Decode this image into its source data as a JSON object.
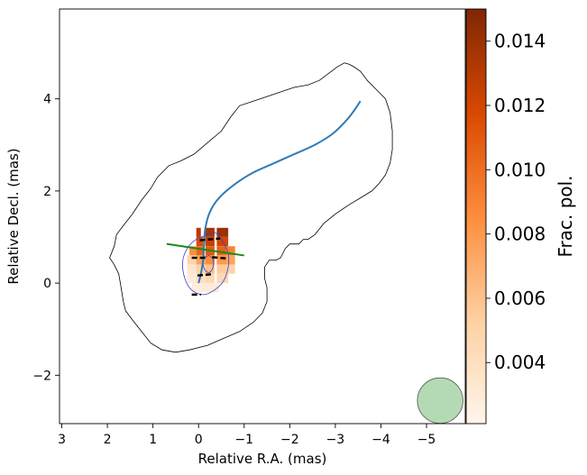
{
  "chart_data": {
    "type": "polarization-map",
    "xlabel": "Relative R.A. (mas)",
    "ylabel": "Relative Decl. (mas)",
    "xlim": [
      3.05,
      -5.85
    ],
    "ylim": [
      -3.05,
      5.95
    ],
    "x_ticks": [
      3,
      2,
      1,
      0,
      -1,
      -2,
      -3,
      -4,
      -5
    ],
    "x_tick_labels": [
      "3",
      "2",
      "1",
      "0",
      "−1",
      "−2",
      "−3",
      "−4",
      "−5"
    ],
    "y_ticks": [
      -2,
      0,
      2,
      4
    ],
    "y_tick_labels": [
      "−2",
      "0",
      "2",
      "4"
    ],
    "colorbar": {
      "label": "Frac. pol.",
      "range": [
        0.0021,
        0.015
      ],
      "ticks": [
        0.004,
        0.006,
        0.008,
        0.01,
        0.012,
        0.014
      ],
      "tick_labels": [
        "0.004",
        "0.006",
        "0.008",
        "0.010",
        "0.012",
        "0.014"
      ],
      "colormap": [
        "#fff5eb",
        "#fdd0a2",
        "#fd8d3c",
        "#d94801",
        "#7f2704"
      ]
    },
    "outer_contour": [
      [
        -3.2,
        4.78
      ],
      [
        -3.3,
        4.75
      ],
      [
        -3.4,
        4.7
      ],
      [
        -3.55,
        4.6
      ],
      [
        -3.7,
        4.4
      ],
      [
        -3.9,
        4.2
      ],
      [
        -4.1,
        4.0
      ],
      [
        -4.2,
        3.7
      ],
      [
        -4.25,
        3.3
      ],
      [
        -4.25,
        2.9
      ],
      [
        -4.2,
        2.6
      ],
      [
        -4.1,
        2.35
      ],
      [
        -3.95,
        2.15
      ],
      [
        -3.8,
        2.0
      ],
      [
        -3.55,
        1.85
      ],
      [
        -3.3,
        1.7
      ],
      [
        -3.0,
        1.5
      ],
      [
        -2.75,
        1.3
      ],
      [
        -2.55,
        1.05
      ],
      [
        -2.4,
        0.95
      ],
      [
        -2.3,
        0.95
      ],
      [
        -2.2,
        0.85
      ],
      [
        -2.0,
        0.85
      ],
      [
        -1.9,
        0.75
      ],
      [
        -1.8,
        0.55
      ],
      [
        -1.7,
        0.5
      ],
      [
        -1.55,
        0.5
      ],
      [
        -1.45,
        0.35
      ],
      [
        -1.45,
        0.1
      ],
      [
        -1.5,
        -0.1
      ],
      [
        -1.5,
        -0.4
      ],
      [
        -1.4,
        -0.65
      ],
      [
        -1.2,
        -0.85
      ],
      [
        -0.9,
        -1.05
      ],
      [
        -0.55,
        -1.2
      ],
      [
        -0.2,
        -1.35
      ],
      [
        0.2,
        -1.45
      ],
      [
        0.5,
        -1.5
      ],
      [
        0.8,
        -1.45
      ],
      [
        1.05,
        -1.3
      ],
      [
        1.25,
        -1.05
      ],
      [
        1.45,
        -0.8
      ],
      [
        1.6,
        -0.6
      ],
      [
        1.65,
        -0.4
      ],
      [
        1.7,
        -0.1
      ],
      [
        1.75,
        0.2
      ],
      [
        1.85,
        0.4
      ],
      [
        1.95,
        0.55
      ],
      [
        1.85,
        0.8
      ],
      [
        1.8,
        1.05
      ],
      [
        1.65,
        1.25
      ],
      [
        1.45,
        1.5
      ],
      [
        1.25,
        1.8
      ],
      [
        1.05,
        2.05
      ],
      [
        0.9,
        2.3
      ],
      [
        0.65,
        2.55
      ],
      [
        0.4,
        2.65
      ],
      [
        0.1,
        2.8
      ],
      [
        -0.2,
        3.05
      ],
      [
        -0.5,
        3.3
      ],
      [
        -0.7,
        3.6
      ],
      [
        -0.9,
        3.85
      ],
      [
        -1.2,
        3.95
      ],
      [
        -1.5,
        4.05
      ],
      [
        -1.8,
        4.15
      ],
      [
        -2.1,
        4.25
      ],
      [
        -2.4,
        4.3
      ],
      [
        -2.65,
        4.4
      ],
      [
        -2.85,
        4.55
      ],
      [
        -3.05,
        4.7
      ],
      [
        -3.2,
        4.78
      ]
    ],
    "inner_contour": [
      [
        -0.2,
        1.05
      ],
      [
        0.05,
        0.95
      ],
      [
        0.25,
        0.75
      ],
      [
        0.35,
        0.45
      ],
      [
        0.3,
        0.1
      ],
      [
        0.15,
        -0.15
      ],
      [
        -0.1,
        -0.25
      ],
      [
        -0.35,
        -0.15
      ],
      [
        -0.55,
        0.05
      ],
      [
        -0.65,
        0.35
      ],
      [
        -0.65,
        0.65
      ],
      [
        -0.5,
        0.95
      ],
      [
        -0.35,
        1.1
      ],
      [
        -0.2,
        1.05
      ]
    ],
    "core_contour": [
      [
        -0.22,
        0.6
      ],
      [
        -0.13,
        0.55
      ],
      [
        -0.1,
        0.45
      ],
      [
        -0.13,
        0.3
      ],
      [
        -0.22,
        0.23
      ],
      [
        -0.3,
        0.3
      ],
      [
        -0.33,
        0.45
      ],
      [
        -0.3,
        0.55
      ],
      [
        -0.22,
        0.6
      ]
    ],
    "jet_curve": [
      [
        0.0,
        0.0
      ],
      [
        -0.05,
        0.2
      ],
      [
        -0.1,
        0.5
      ],
      [
        -0.12,
        0.85
      ],
      [
        -0.15,
        1.2
      ],
      [
        -0.25,
        1.55
      ],
      [
        -0.45,
        1.85
      ],
      [
        -0.8,
        2.15
      ],
      [
        -1.2,
        2.4
      ],
      [
        -1.65,
        2.6
      ],
      [
        -2.1,
        2.8
      ],
      [
        -2.55,
        3.0
      ],
      [
        -2.95,
        3.25
      ],
      [
        -3.3,
        3.6
      ],
      [
        -3.55,
        3.95
      ]
    ],
    "ridge_line": [
      [
        0.7,
        0.85
      ],
      [
        -1.0,
        0.6
      ]
    ],
    "pixels": [
      {
        "x": 0.05,
        "y": 1.0,
        "w": 0.1,
        "h": 0.2,
        "v": 0.013
      },
      {
        "x": -0.15,
        "y": 1.0,
        "w": 0.2,
        "h": 0.2,
        "v": 0.0135
      },
      {
        "x": -0.4,
        "y": 1.0,
        "w": 0.25,
        "h": 0.2,
        "v": 0.014
      },
      {
        "x": 0.05,
        "y": 0.8,
        "w": 0.15,
        "h": 0.2,
        "v": 0.0115
      },
      {
        "x": -0.15,
        "y": 0.8,
        "w": 0.2,
        "h": 0.2,
        "v": 0.0125
      },
      {
        "x": -0.4,
        "y": 0.8,
        "w": 0.25,
        "h": 0.2,
        "v": 0.012
      },
      {
        "x": 0.2,
        "y": 0.6,
        "w": 0.15,
        "h": 0.2,
        "v": 0.0085
      },
      {
        "x": 0.05,
        "y": 0.6,
        "w": 0.15,
        "h": 0.2,
        "v": 0.0105
      },
      {
        "x": -0.15,
        "y": 0.6,
        "w": 0.2,
        "h": 0.2,
        "v": 0.011
      },
      {
        "x": -0.4,
        "y": 0.6,
        "w": 0.25,
        "h": 0.2,
        "v": 0.0105
      },
      {
        "x": -0.6,
        "y": 0.6,
        "w": 0.2,
        "h": 0.2,
        "v": 0.009
      },
      {
        "x": 0.25,
        "y": 0.4,
        "w": 0.2,
        "h": 0.2,
        "v": 0.005
      },
      {
        "x": 0.05,
        "y": 0.4,
        "w": 0.2,
        "h": 0.2,
        "v": 0.0075
      },
      {
        "x": -0.15,
        "y": 0.4,
        "w": 0.2,
        "h": 0.2,
        "v": 0.0085
      },
      {
        "x": -0.4,
        "y": 0.4,
        "w": 0.25,
        "h": 0.2,
        "v": 0.008
      },
      {
        "x": -0.6,
        "y": 0.4,
        "w": 0.2,
        "h": 0.2,
        "v": 0.0075
      },
      {
        "x": 0.25,
        "y": 0.2,
        "w": 0.2,
        "h": 0.2,
        "v": 0.0035
      },
      {
        "x": 0.05,
        "y": 0.2,
        "w": 0.2,
        "h": 0.2,
        "v": 0.005
      },
      {
        "x": -0.15,
        "y": 0.2,
        "w": 0.2,
        "h": 0.2,
        "v": 0.006
      },
      {
        "x": -0.4,
        "y": 0.2,
        "w": 0.25,
        "h": 0.2,
        "v": 0.0055
      },
      {
        "x": -0.6,
        "y": 0.2,
        "w": 0.2,
        "h": 0.2,
        "v": 0.005
      },
      {
        "x": 0.25,
        "y": 0.0,
        "w": 0.2,
        "h": 0.2,
        "v": 0.003
      },
      {
        "x": 0.05,
        "y": 0.0,
        "w": 0.2,
        "h": 0.2,
        "v": 0.004
      },
      {
        "x": -0.15,
        "y": 0.0,
        "w": 0.2,
        "h": 0.2,
        "v": 0.0045
      },
      {
        "x": -0.4,
        "y": 0.0,
        "w": 0.25,
        "h": 0.2,
        "v": 0.0045
      },
      {
        "x": 0.15,
        "y": -0.2,
        "w": 0.2,
        "h": 0.2,
        "v": 0.0028
      },
      {
        "x": -0.05,
        "y": -0.2,
        "w": 0.2,
        "h": 0.2,
        "v": 0.003
      },
      {
        "x": -0.25,
        "y": -0.2,
        "w": 0.2,
        "h": 0.2,
        "v": 0.003
      }
    ],
    "evpa_ticks": [
      {
        "x": -0.25,
        "y": 0.95,
        "len": 0.45,
        "angle_deg": 5
      },
      {
        "x": 0.0,
        "y": 0.55,
        "len": 0.3,
        "angle_deg": 0
      },
      {
        "x": -0.45,
        "y": 0.55,
        "len": 0.3,
        "angle_deg": -5
      },
      {
        "x": -0.15,
        "y": 0.18,
        "len": 0.35,
        "angle_deg": 5
      },
      {
        "x": 0.05,
        "y": -0.25,
        "len": 0.2,
        "angle_deg": 0
      }
    ],
    "beam": {
      "x": -5.3,
      "y": -2.55,
      "major": 1.0,
      "minor": 1.0,
      "angle_deg": 0,
      "color": "#6ab56a"
    },
    "colors": {
      "jet": "#2f7bb7",
      "ridge": "#1a8a1a",
      "inner_contour": "#3c3cd0",
      "outer_contour": "#000000"
    }
  }
}
